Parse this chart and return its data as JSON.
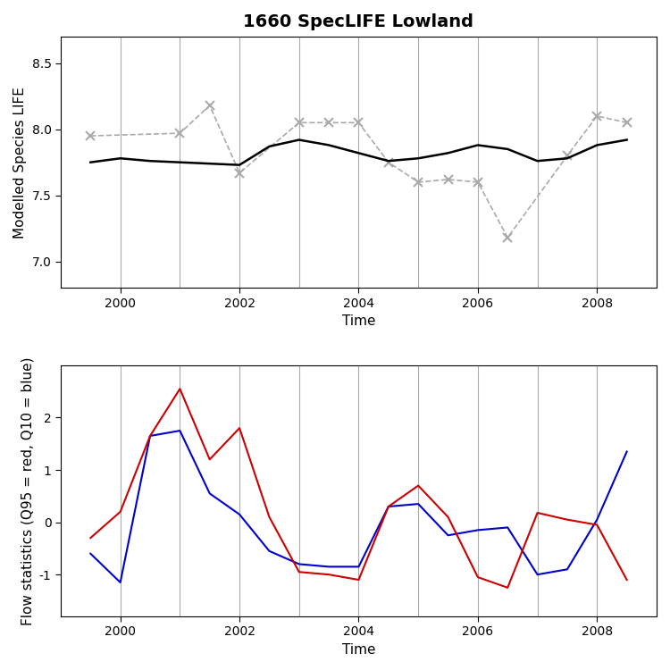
{
  "title": "1660 SpecLIFE Lowland",
  "top": {
    "ylabel": "Modelled Species LIFE",
    "xlabel": "Time",
    "ylim": [
      6.8,
      8.7
    ],
    "yticks": [
      7.0,
      7.5,
      8.0,
      8.5
    ],
    "black_x": [
      1999.5,
      2000.0,
      2000.5,
      2001.0,
      2001.5,
      2002.0,
      2002.5,
      2003.0,
      2003.5,
      2004.0,
      2004.5,
      2005.0,
      2005.5,
      2006.0,
      2006.5,
      2007.0,
      2007.5,
      2008.0,
      2008.5
    ],
    "black_y": [
      7.75,
      7.78,
      7.76,
      7.75,
      7.74,
      7.73,
      7.87,
      7.92,
      7.88,
      7.82,
      7.76,
      7.78,
      7.82,
      7.88,
      7.85,
      7.76,
      7.78,
      7.88,
      7.92
    ],
    "grey_x": [
      1999.5,
      2001.0,
      2001.5,
      2002.0,
      2003.0,
      2003.5,
      2004.0,
      2004.5,
      2005.0,
      2005.5,
      2006.0,
      2006.5,
      2007.5,
      2008.0,
      2008.5
    ],
    "grey_y": [
      7.95,
      7.97,
      8.18,
      7.67,
      8.05,
      8.05,
      8.05,
      7.75,
      7.6,
      7.62,
      7.6,
      7.18,
      7.8,
      8.1,
      8.05
    ],
    "vlines": [
      2000,
      2001,
      2002,
      2003,
      2004,
      2005,
      2006,
      2007,
      2008
    ],
    "xticks": [
      2000,
      2002,
      2004,
      2006,
      2008
    ]
  },
  "bottom": {
    "ylabel": "Flow statistics (Q95 = red, Q10 = blue)",
    "xlabel": "Time",
    "ylim": [
      -1.8,
      3.0
    ],
    "yticks": [
      -1,
      0,
      1,
      2
    ],
    "red_x": [
      1999.5,
      2000.0,
      2000.5,
      2001.0,
      2001.5,
      2002.0,
      2002.5,
      2003.0,
      2003.5,
      2004.0,
      2004.5,
      2005.0,
      2005.5,
      2006.0,
      2006.5,
      2007.0,
      2007.5,
      2008.0,
      2008.5
    ],
    "red_y": [
      -0.3,
      0.2,
      1.65,
      2.55,
      1.2,
      1.8,
      0.1,
      -0.95,
      -1.0,
      -1.1,
      0.3,
      0.7,
      0.1,
      -1.05,
      -1.25,
      0.18,
      0.05,
      -0.05,
      -1.1
    ],
    "blue_x": [
      1999.5,
      2000.0,
      2000.5,
      2001.0,
      2001.5,
      2002.0,
      2002.5,
      2003.0,
      2003.5,
      2004.0,
      2004.5,
      2005.0,
      2005.5,
      2006.0,
      2006.5,
      2007.0,
      2007.5,
      2008.0,
      2008.5
    ],
    "blue_y": [
      -0.6,
      -1.15,
      1.65,
      1.75,
      0.55,
      0.15,
      -0.55,
      -0.8,
      -0.85,
      -0.85,
      0.3,
      0.35,
      -0.25,
      -0.15,
      -0.1,
      -1.0,
      -0.9,
      0.05,
      1.35
    ],
    "vlines": [
      2000,
      2001,
      2002,
      2003,
      2004,
      2005,
      2006,
      2007,
      2008
    ],
    "xticks": [
      2000,
      2002,
      2004,
      2006,
      2008
    ]
  },
  "grey_color": "#aaaaaa",
  "black_color": "#000000",
  "red_color": "#cc0000",
  "blue_color": "#0000cc",
  "vline_color": "#aaaaaa",
  "bg_color": "#ffffff",
  "title_fontsize": 14,
  "label_fontsize": 11,
  "tick_fontsize": 10
}
